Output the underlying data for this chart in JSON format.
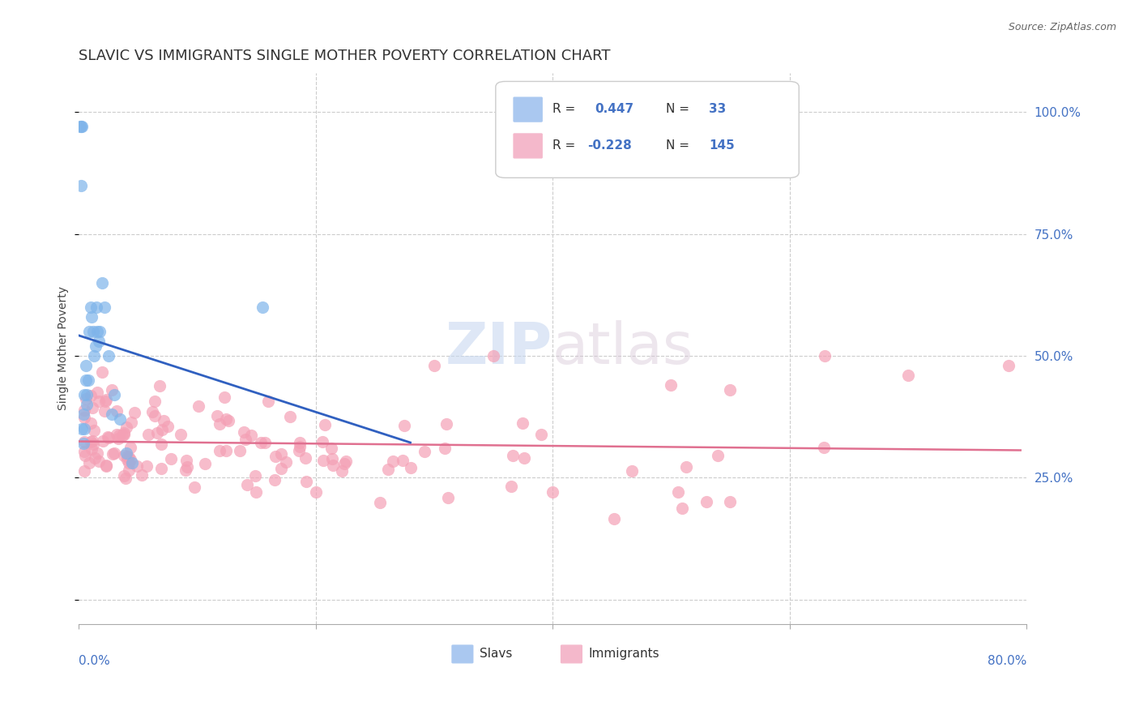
{
  "title": "SLAVIC VS IMMIGRANTS SINGLE MOTHER POVERTY CORRELATION CHART",
  "source": "Source: ZipAtlas.com",
  "ylabel": "Single Mother Poverty",
  "slavs_color": "#7eb4ea",
  "immigrants_color": "#f4a0b5",
  "slavs_line_color": "#3060c0",
  "immigrants_line_color": "#e07090",
  "background_color": "#ffffff",
  "watermark_ZIP": "ZIP",
  "watermark_atlas": "atlas",
  "r_slavs": "0.447",
  "n_slavs": "33",
  "r_immigrants": "-0.228",
  "n_immigrants": "145"
}
